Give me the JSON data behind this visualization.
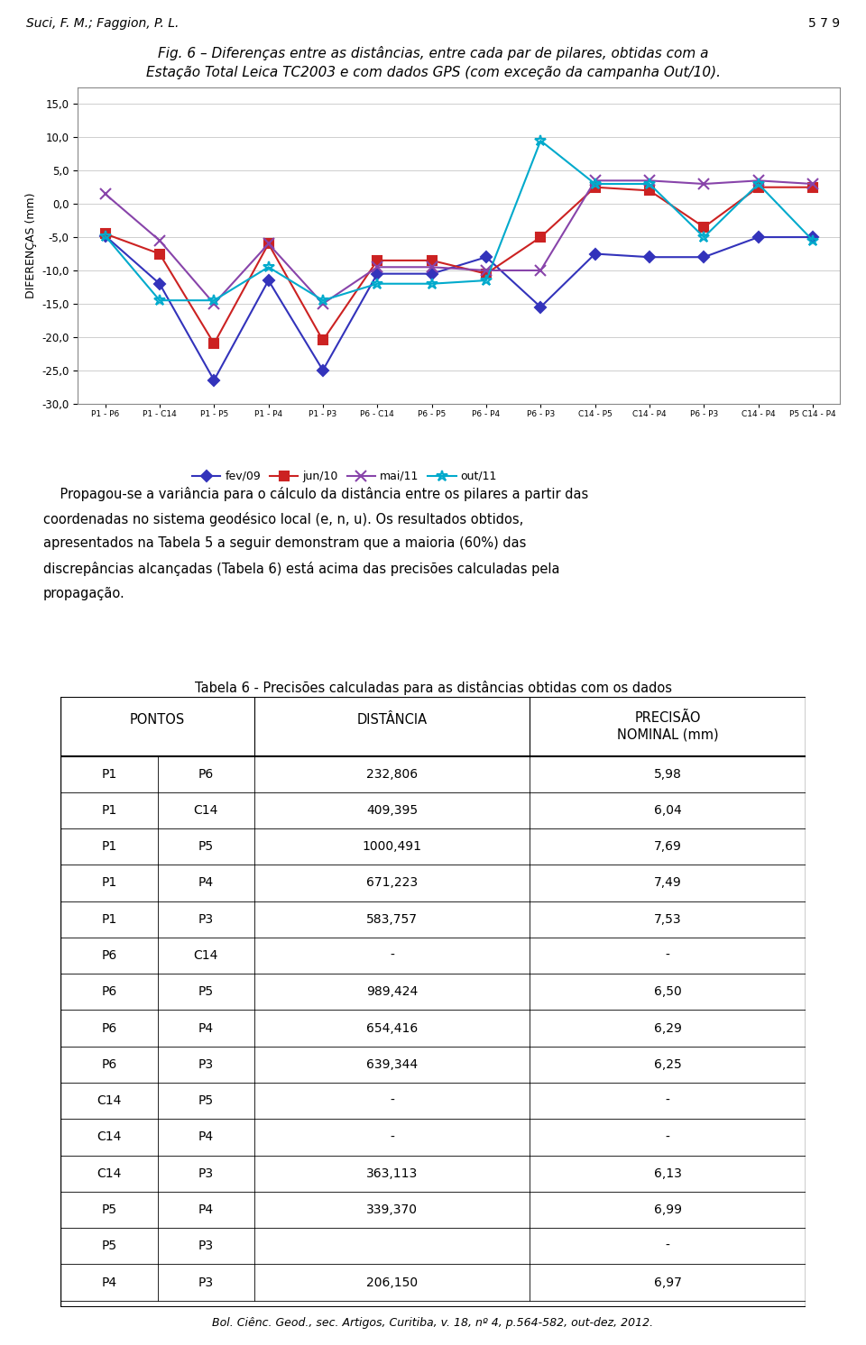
{
  "header_left": "Suci, F. M.; Faggion, P. L.",
  "header_right": "5 7 9",
  "fig_title_line1": "Fig. 6 – Diferenças entre as distâncias, entre cada par de pilares, obtidas com a",
  "fig_title_line2": "Estação Total Leica TC2003 e com dados GPS (com exceção da campanha Out/10).",
  "x_labels": [
    "P1 - P6",
    "P1 - C14",
    "P1 - P5",
    "P1 - P4",
    "P1 - P3",
    "P6 - C14",
    "P6 - P5",
    "P6 - P4",
    "P6 - P3",
    "C14 - P5",
    "C14 - P4",
    "P6 - P3",
    "C14 - P4",
    "P5 C14 - P4"
  ],
  "series": [
    {
      "label": "fev/09",
      "color": "#3333bb",
      "marker": "D",
      "marker_size": 6,
      "values": [
        -4.8,
        -12.0,
        -26.5,
        -11.5,
        -25.0,
        -10.5,
        -10.5,
        -8.0,
        -15.5,
        -7.5,
        -8.0,
        -8.0,
        -5.0,
        -5.0
      ]
    },
    {
      "label": "jun/10",
      "color": "#cc2222",
      "marker": "s",
      "marker_size": 7,
      "values": [
        -4.5,
        -7.5,
        -21.0,
        -6.0,
        -20.5,
        -8.5,
        -8.5,
        -10.5,
        -5.0,
        2.5,
        2.0,
        -3.5,
        2.5,
        2.5
      ]
    },
    {
      "label": "mai/11",
      "color": "#8844aa",
      "marker": "x",
      "marker_size": 8,
      "values": [
        1.5,
        -5.5,
        -15.0,
        -6.0,
        -15.0,
        -9.5,
        -9.5,
        -10.0,
        -10.0,
        3.5,
        3.5,
        3.0,
        3.5,
        3.0
      ]
    },
    {
      "label": "out/11",
      "color": "#00aacc",
      "marker": "*",
      "marker_size": 9,
      "values": [
        -4.8,
        -14.5,
        -14.5,
        -9.5,
        -14.5,
        -12.0,
        -12.0,
        -11.5,
        9.5,
        3.0,
        3.0,
        -5.0,
        3.0,
        -5.5
      ]
    }
  ],
  "ylabel": "DIFERENÇAS (mm)",
  "ylim": [
    -30.0,
    17.5
  ],
  "yticks": [
    -30.0,
    -25.0,
    -20.0,
    -15.0,
    -10.0,
    -5.0,
    0.0,
    5.0,
    10.0,
    15.0
  ],
  "table_title": "Tabela 6 - Precisões calculadas para as distâncias obtidas com os dados",
  "table_rows": [
    [
      "P1",
      "P6",
      "232,806",
      "5,98"
    ],
    [
      "P1",
      "C14",
      "409,395",
      "6,04"
    ],
    [
      "P1",
      "P5",
      "1000,491",
      "7,69"
    ],
    [
      "P1",
      "P4",
      "671,223",
      "7,49"
    ],
    [
      "P1",
      "P3",
      "583,757",
      "7,53"
    ],
    [
      "P6",
      "C14",
      "-",
      "-"
    ],
    [
      "P6",
      "P5",
      "989,424",
      "6,50"
    ],
    [
      "P6",
      "P4",
      "654,416",
      "6,29"
    ],
    [
      "P6",
      "P3",
      "639,344",
      "6,25"
    ],
    [
      "C14",
      "P5",
      "-",
      "-"
    ],
    [
      "C14",
      "P4",
      "-",
      "-"
    ],
    [
      "C14",
      "P3",
      "363,113",
      "6,13"
    ],
    [
      "P5",
      "P4",
      "339,370",
      "6,99"
    ],
    [
      "P5",
      "P3",
      "",
      "-"
    ],
    [
      "P4",
      "P3",
      "206,150",
      "6,97"
    ]
  ],
  "footer_text": "Bol. Ciênc. Geod., sec. Artigos, Curitiba, v. 18, nº 4, p.564-582, out-dez, 2012.",
  "background_color": "#ffffff"
}
